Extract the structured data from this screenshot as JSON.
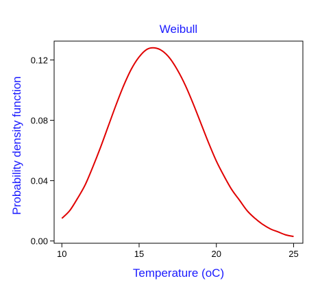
{
  "chart_data": {
    "type": "line",
    "title": "Weibull",
    "xlabel": "Temperature (oC)",
    "ylabel": "Probability density function",
    "xlim": [
      9.5,
      25.6
    ],
    "ylim": [
      -0.0015,
      0.1325
    ],
    "x_ticks": [
      10,
      15,
      20,
      25
    ],
    "x_tick_labels": [
      "10",
      "15",
      "20",
      "25"
    ],
    "y_ticks": [
      0.0,
      0.04,
      0.08,
      0.12
    ],
    "y_tick_labels": [
      "0.00",
      "0.04",
      "0.08",
      "0.12"
    ],
    "grid": false,
    "legend": "none",
    "series": [
      {
        "color": "#e00000",
        "x": [
          10,
          10.5,
          11,
          11.5,
          12,
          12.5,
          13,
          13.5,
          14,
          14.5,
          15,
          15.5,
          16,
          16.5,
          17,
          17.5,
          18,
          18.5,
          19,
          19.5,
          20,
          20.5,
          21,
          21.5,
          22,
          22.5,
          23,
          23.5,
          24,
          24.5,
          25
        ],
        "y": [
          0.015,
          0.02,
          0.028,
          0.037,
          0.049,
          0.062,
          0.076,
          0.09,
          0.103,
          0.114,
          0.122,
          0.127,
          0.128,
          0.126,
          0.121,
          0.113,
          0.103,
          0.091,
          0.078,
          0.065,
          0.053,
          0.043,
          0.034,
          0.027,
          0.02,
          0.015,
          0.011,
          0.008,
          0.006,
          0.004,
          0.003
        ]
      }
    ]
  }
}
